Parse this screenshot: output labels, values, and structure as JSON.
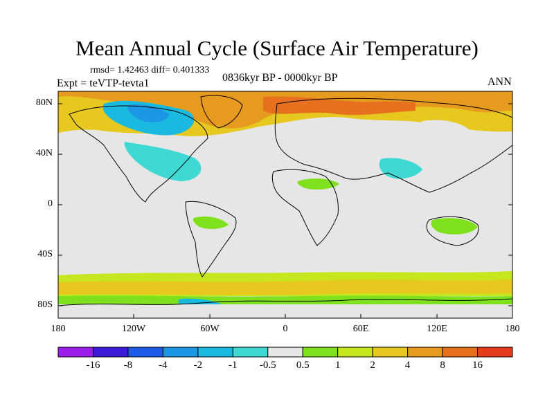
{
  "title": "Mean Annual Cycle (Surface Air Temperature)",
  "stats": "rmsd= 1.42463 diff= 0.401333",
  "experiment": "Expt = teVTP-tevta1",
  "period": "0836kyr BP - 0000kyr BP",
  "season": "ANN",
  "latitude_labels": [
    "80N",
    "40N",
    "0",
    "40S",
    "80S"
  ],
  "longitude_labels": [
    "180",
    "120W",
    "60W",
    "0",
    "60E",
    "120E",
    "180"
  ],
  "colorbar": {
    "labels": [
      "-16",
      "-8",
      "-4",
      "-2",
      "-1",
      "-0.5",
      "0.5",
      "1",
      "2",
      "4",
      "8",
      "16"
    ],
    "colors": [
      "#9b1fe8",
      "#3c1ad8",
      "#1e5be6",
      "#1e96e6",
      "#1ab9e0",
      "#3ed9d4",
      "#e6e6e6",
      "#7fe11e",
      "#c6e61e",
      "#e6c81e",
      "#e69a1e",
      "#e6701e",
      "#e63c1e"
    ]
  },
  "colors": {
    "land_outline": "#000000",
    "background": "#e6e6e6"
  }
}
